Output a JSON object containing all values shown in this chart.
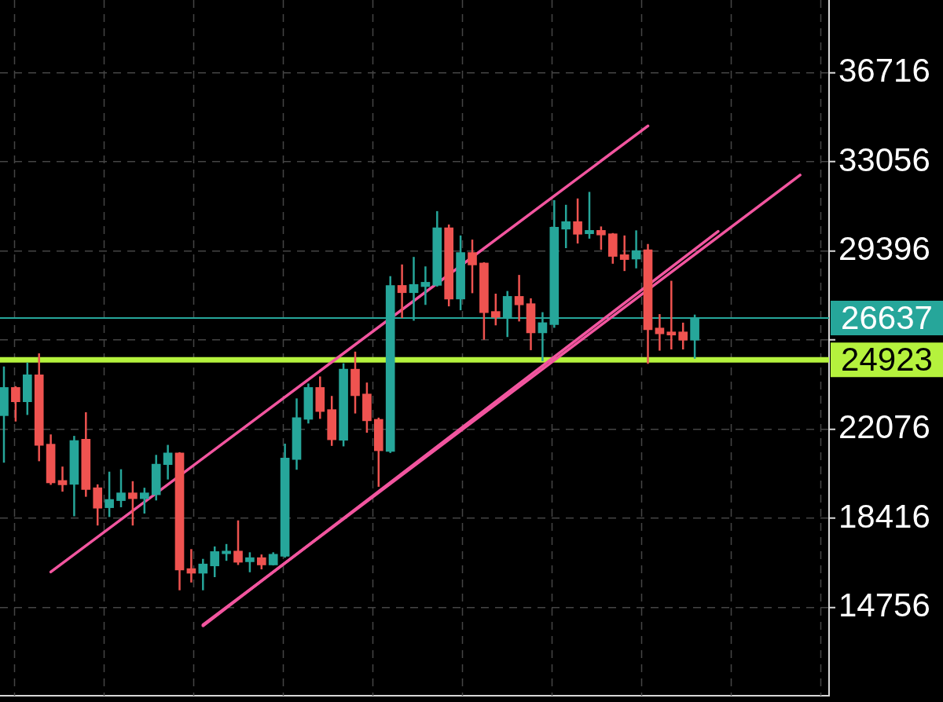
{
  "chart_data": {
    "type": "candlestick",
    "categories": [
      null,
      null,
      null,
      null,
      null,
      null,
      null,
      null,
      null,
      null,
      null,
      null,
      null,
      null,
      null,
      null,
      null,
      null,
      null,
      null,
      null,
      null,
      null,
      null,
      null,
      null,
      null,
      null,
      null,
      null,
      null,
      null,
      null,
      null,
      null,
      null,
      null,
      null,
      null,
      null,
      null,
      null,
      null,
      null,
      null,
      null,
      null,
      null,
      null,
      null,
      null,
      null,
      null,
      null,
      null,
      null,
      null,
      null,
      null,
      null,
      null,
      null,
      null,
      null,
      null,
      null,
      null,
      null,
      null
    ],
    "ohlc": [
      [
        22630,
        24650,
        20700,
        23790
      ],
      [
        23790,
        23840,
        22390,
        23200
      ],
      [
        23200,
        24810,
        22660,
        24310
      ],
      [
        24310,
        25190,
        20760,
        21410
      ],
      [
        21460,
        21860,
        19790,
        19870
      ],
      [
        19970,
        20540,
        19510,
        19790
      ],
      [
        19810,
        21800,
        18500,
        21610
      ],
      [
        21660,
        22770,
        19300,
        19600
      ],
      [
        19670,
        19810,
        18120,
        18830
      ],
      [
        18850,
        20330,
        18470,
        19190
      ],
      [
        19140,
        20430,
        18870,
        19460
      ],
      [
        19460,
        19940,
        18120,
        19220
      ],
      [
        19220,
        19670,
        18610,
        19460
      ],
      [
        19380,
        21020,
        19150,
        20640
      ],
      [
        20620,
        21430,
        20010,
        21100
      ],
      [
        21100,
        21130,
        15460,
        16290
      ],
      [
        16350,
        17150,
        15780,
        16160
      ],
      [
        16160,
        16750,
        15460,
        16540
      ],
      [
        16460,
        17260,
        16000,
        17050
      ],
      [
        16960,
        17360,
        16670,
        17070
      ],
      [
        17070,
        18330,
        16500,
        16610
      ],
      [
        16630,
        17020,
        16200,
        16800
      ],
      [
        16800,
        16930,
        16320,
        16500
      ],
      [
        16500,
        17020,
        16480,
        16940
      ],
      [
        16860,
        21480,
        16800,
        20890
      ],
      [
        20830,
        23340,
        20410,
        22550
      ],
      [
        22480,
        23950,
        22310,
        23790
      ],
      [
        23790,
        24240,
        22500,
        22800
      ],
      [
        22880,
        23440,
        21390,
        21640
      ],
      [
        21620,
        24780,
        21370,
        24540
      ],
      [
        24540,
        25260,
        22720,
        23450
      ],
      [
        23520,
        23990,
        21930,
        22420
      ],
      [
        22480,
        22550,
        19710,
        21190
      ],
      [
        21160,
        28360,
        21100,
        27980
      ],
      [
        27980,
        28840,
        26640,
        27680
      ],
      [
        27680,
        29150,
        26530,
        28020
      ],
      [
        27930,
        28760,
        27180,
        28110
      ],
      [
        27980,
        31030,
        27930,
        30350
      ],
      [
        30350,
        30480,
        27120,
        27420
      ],
      [
        27420,
        30030,
        26960,
        29330
      ],
      [
        29330,
        29860,
        27660,
        28820
      ],
      [
        28900,
        28930,
        25750,
        26860
      ],
      [
        26910,
        27640,
        26340,
        26670
      ],
      [
        26670,
        27750,
        25860,
        27530
      ],
      [
        27530,
        28410,
        26500,
        27180
      ],
      [
        27230,
        27450,
        25320,
        26030
      ],
      [
        26030,
        26880,
        24870,
        26450
      ],
      [
        26370,
        31480,
        26240,
        30370
      ],
      [
        30290,
        31290,
        29510,
        30600
      ],
      [
        30600,
        31550,
        29700,
        30080
      ],
      [
        30100,
        31820,
        29900,
        30240
      ],
      [
        30240,
        30400,
        29440,
        30050
      ],
      [
        30100,
        30130,
        28870,
        29170
      ],
      [
        29240,
        30030,
        28570,
        29040
      ],
      [
        29060,
        30240,
        28680,
        29410
      ],
      [
        29440,
        29680,
        24760,
        26160
      ],
      [
        26230,
        26800,
        25300,
        25990
      ],
      [
        26070,
        28170,
        25350,
        25940
      ],
      [
        26070,
        26450,
        25350,
        25730
      ],
      [
        25730,
        26780,
        24970,
        26637
      ],
      null,
      null,
      null,
      null,
      null,
      null,
      null,
      null,
      null
    ],
    "colors": [
      "#26a69a",
      "#ef5350",
      "#26a69a",
      "#ef5350",
      "#ef5350",
      "#ef5350",
      "#26a69a",
      "#ef5350",
      "#ef5350",
      "#26a69a",
      "#26a69a",
      "#ef5350",
      "#26a69a",
      "#26a69a",
      "#26a69a",
      "#ef5350",
      "#ef5350",
      "#26a69a",
      "#26a69a",
      "#26a69a",
      "#ef5350",
      "#26a69a",
      "#ef5350",
      "#26a69a",
      "#26a69a",
      "#26a69a",
      "#26a69a",
      "#ef5350",
      "#ef5350",
      "#26a69a",
      "#ef5350",
      "#ef5350",
      "#ef5350",
      "#26a69a",
      "#ef5350",
      "#26a69a",
      "#26a69a",
      "#26a69a",
      "#ef5350",
      "#26a69a",
      "#ef5350",
      "#ef5350",
      "#ef5350",
      "#26a69a",
      "#ef5350",
      "#ef5350",
      "#26a69a",
      "#26a69a",
      "#26a69a",
      "#ef5350",
      "#26a69a",
      "#ef5350",
      "#ef5350",
      "#ef5350",
      "#26a69a",
      "#ef5350",
      "#ef5350",
      "#ef5350",
      "#ef5350",
      "#26a69a",
      null,
      null,
      null,
      null,
      null,
      null,
      null,
      null,
      null
    ],
    "series": [
      {
        "type": "line",
        "color": "#f2559f",
        "values": [
          null,
          null,
          null,
          null,
          16210,
          null,
          null,
          null,
          null,
          null,
          null,
          null,
          null,
          null,
          null,
          null,
          null,
          null,
          null,
          null,
          null,
          null,
          null,
          null,
          null,
          null,
          null,
          null,
          null,
          null,
          null,
          null,
          null,
          null,
          null,
          null,
          null,
          null,
          null,
          null,
          null,
          null,
          null,
          null,
          null,
          null,
          null,
          null,
          null,
          null,
          null,
          null,
          null,
          null,
          null,
          34530,
          null,
          null,
          null,
          null,
          null,
          null,
          null,
          null,
          null,
          null,
          null,
          null,
          null
        ]
      },
      {
        "type": "line",
        "color": "#f2559f",
        "values": [
          null,
          null,
          null,
          null,
          null,
          null,
          null,
          null,
          null,
          null,
          null,
          null,
          null,
          null,
          null,
          null,
          null,
          14040,
          null,
          null,
          null,
          null,
          null,
          null,
          null,
          null,
          null,
          null,
          null,
          null,
          null,
          null,
          null,
          null,
          null,
          null,
          null,
          null,
          null,
          null,
          null,
          null,
          null,
          null,
          null,
          null,
          null,
          null,
          null,
          null,
          null,
          null,
          null,
          null,
          null,
          null,
          null,
          null,
          null,
          null,
          null,
          null,
          null,
          null,
          null,
          null,
          null,
          null,
          32510
        ]
      },
      {
        "type": "line",
        "color": "#f2559f",
        "values": [
          null,
          null,
          null,
          null,
          null,
          null,
          null,
          null,
          null,
          null,
          null,
          null,
          null,
          null,
          null,
          null,
          null,
          14000,
          null,
          null,
          null,
          null,
          null,
          null,
          null,
          null,
          null,
          null,
          null,
          null,
          null,
          null,
          null,
          null,
          null,
          null,
          null,
          null,
          null,
          null,
          null,
          null,
          null,
          null,
          null,
          null,
          null,
          null,
          null,
          null,
          null,
          null,
          null,
          null,
          null,
          null,
          null,
          null,
          null,
          null,
          null,
          30200,
          null,
          null,
          null,
          null,
          null,
          null,
          null
        ]
      }
    ],
    "ylim": [
      11130,
      39700
    ],
    "yticks": [
      14756,
      18416,
      22076,
      {
        "value": 25736,
        "label": null
      },
      29396,
      33056,
      36716
    ],
    "grid": true,
    "tick_labels": "y",
    "ref_lines": [
      {
        "axis": "y",
        "value": 26637,
        "label": "26637",
        "color": "#26a69a"
      },
      {
        "axis": "y",
        "value": 24923,
        "label": "24923",
        "color": "#b5f23d"
      }
    ]
  }
}
